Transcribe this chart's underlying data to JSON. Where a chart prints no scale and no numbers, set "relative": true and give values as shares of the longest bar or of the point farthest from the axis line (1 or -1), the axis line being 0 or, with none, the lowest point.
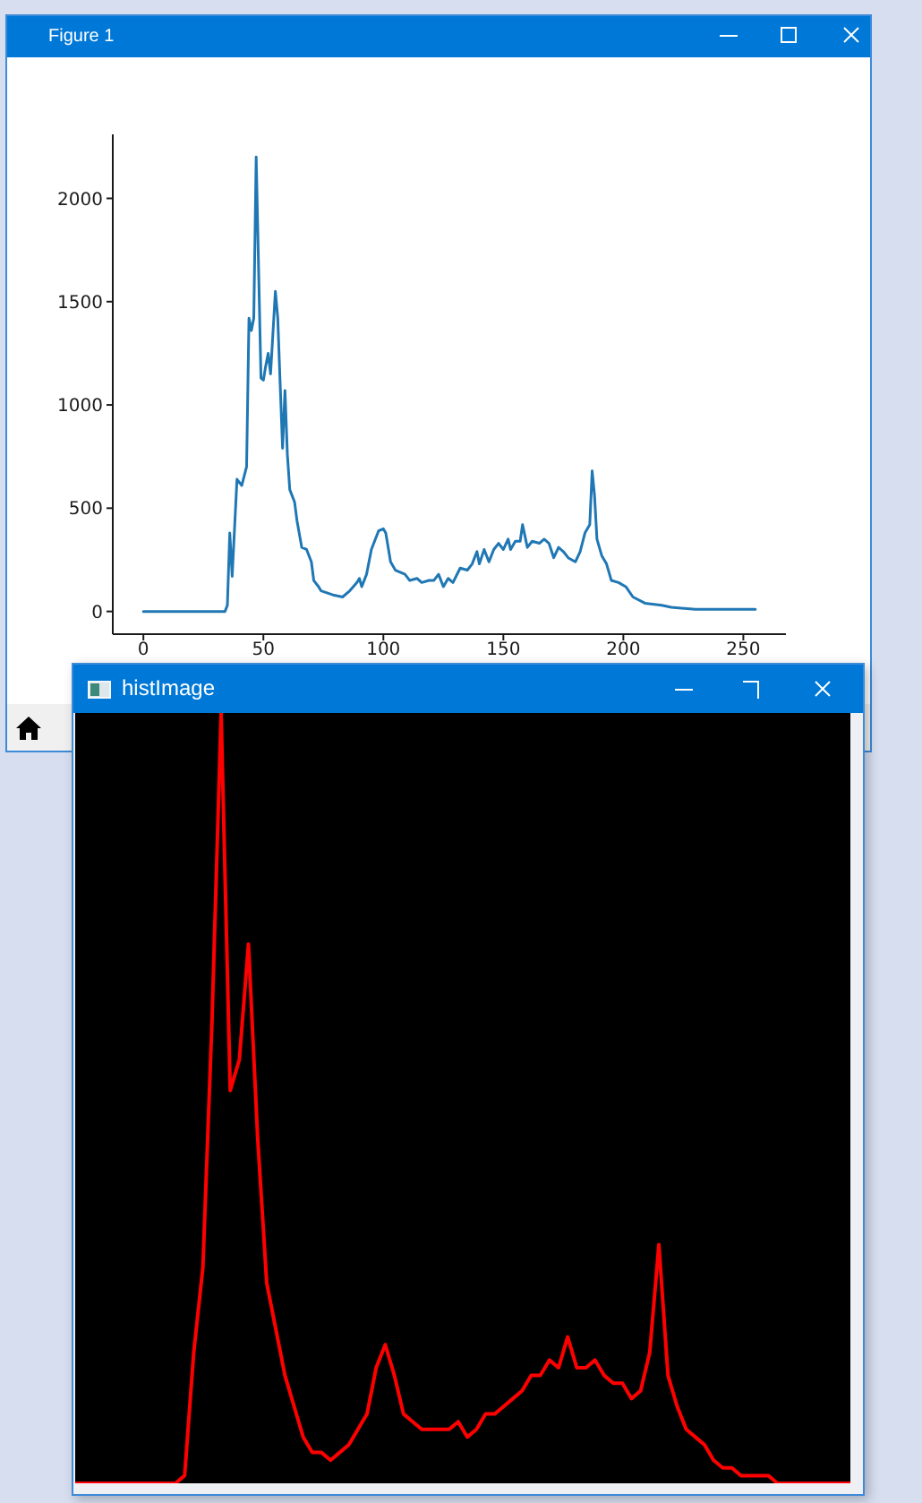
{
  "chart_data": [
    {
      "type": "line",
      "title": "Figure 1",
      "x": [
        0,
        34,
        35,
        36,
        37,
        39,
        41,
        43,
        44,
        45,
        46,
        47,
        49,
        50,
        51,
        52,
        53,
        55,
        56,
        57,
        58,
        59,
        60,
        61,
        63,
        64,
        66,
        68,
        70,
        71,
        73,
        74,
        79,
        83,
        86,
        89,
        90,
        91,
        93,
        95,
        98,
        100,
        101,
        103,
        105,
        109,
        111,
        114,
        116,
        119,
        121,
        123,
        125,
        127,
        129,
        132,
        135,
        137,
        139,
        140,
        142,
        144,
        146,
        148,
        150,
        152,
        153,
        155,
        157,
        158,
        160,
        162,
        165,
        167,
        169,
        171,
        173,
        175,
        177,
        180,
        182,
        184,
        186,
        187,
        188,
        189,
        191,
        193,
        195,
        198,
        201,
        204,
        209,
        216,
        220,
        230,
        255
      ],
      "values": [
        0,
        0,
        30,
        380,
        170,
        640,
        610,
        700,
        1420,
        1360,
        1420,
        2200,
        1130,
        1120,
        1190,
        1250,
        1150,
        1550,
        1420,
        1100,
        790,
        1070,
        760,
        590,
        530,
        440,
        310,
        300,
        240,
        150,
        120,
        100,
        80,
        70,
        100,
        140,
        160,
        120,
        180,
        300,
        390,
        400,
        380,
        240,
        200,
        180,
        150,
        160,
        140,
        150,
        150,
        180,
        120,
        160,
        140,
        210,
        200,
        230,
        290,
        230,
        300,
        240,
        300,
        330,
        300,
        350,
        300,
        340,
        340,
        420,
        310,
        340,
        330,
        350,
        330,
        260,
        310,
        290,
        260,
        240,
        290,
        380,
        420,
        680,
        560,
        350,
        270,
        230,
        150,
        140,
        120,
        70,
        40,
        30,
        20,
        10,
        10
      ],
      "color": "#1f77b4",
      "xlim": [
        -12.75,
        267.75
      ],
      "ylim": [
        -110,
        2310
      ],
      "xticks": [
        0,
        50,
        100,
        150,
        200,
        250
      ],
      "yticks": [
        0,
        500,
        1000,
        1500,
        2000
      ]
    },
    {
      "type": "line",
      "title": "histImage",
      "categories": [
        null,
        null,
        null,
        null,
        null,
        null,
        null,
        null,
        null,
        null,
        null,
        null,
        null,
        null,
        null,
        null,
        null,
        null,
        null,
        null,
        null,
        null,
        null,
        null,
        null,
        null,
        null,
        null,
        null,
        null,
        null,
        null,
        null,
        null,
        null,
        null,
        null,
        null,
        null,
        null,
        null,
        null,
        null,
        null,
        null,
        null,
        null,
        null,
        null,
        null,
        null,
        null,
        null,
        null,
        null,
        null,
        null,
        null,
        null,
        null,
        null,
        null,
        null,
        null,
        null,
        null,
        null,
        null,
        null,
        null,
        null,
        null,
        null,
        null,
        null,
        null,
        null,
        null,
        null,
        null,
        null,
        null,
        null,
        null,
        null,
        null
      ],
      "values": [
        0,
        0,
        0,
        0,
        0,
        0,
        0,
        0,
        0,
        0,
        0,
        0,
        0.01,
        0.17,
        0.28,
        0.6,
        1,
        0.51,
        0.55,
        0.7,
        0.45,
        0.26,
        0.2,
        0.14,
        0.1,
        0.06,
        0.04,
        0.04,
        0.03,
        0.04,
        0.05,
        0.07,
        0.09,
        0.15,
        0.18,
        0.14,
        0.09,
        0.08,
        0.07,
        0.07,
        0.07,
        0.07,
        0.08,
        0.06,
        0.07,
        0.09,
        0.09,
        0.1,
        0.11,
        0.12,
        0.14,
        0.14,
        0.16,
        0.15,
        0.19,
        0.15,
        0.15,
        0.16,
        0.14,
        0.13,
        0.13,
        0.11,
        0.12,
        0.17,
        0.31,
        0.14,
        0.1,
        0.07,
        0.06,
        0.05,
        0.03,
        0.02,
        0.02,
        0.01,
        0.01,
        0.01,
        0.01,
        0,
        0,
        0,
        0,
        0,
        0,
        0,
        0,
        0
      ],
      "color": "#ff0000",
      "relative": true
    }
  ]
}
